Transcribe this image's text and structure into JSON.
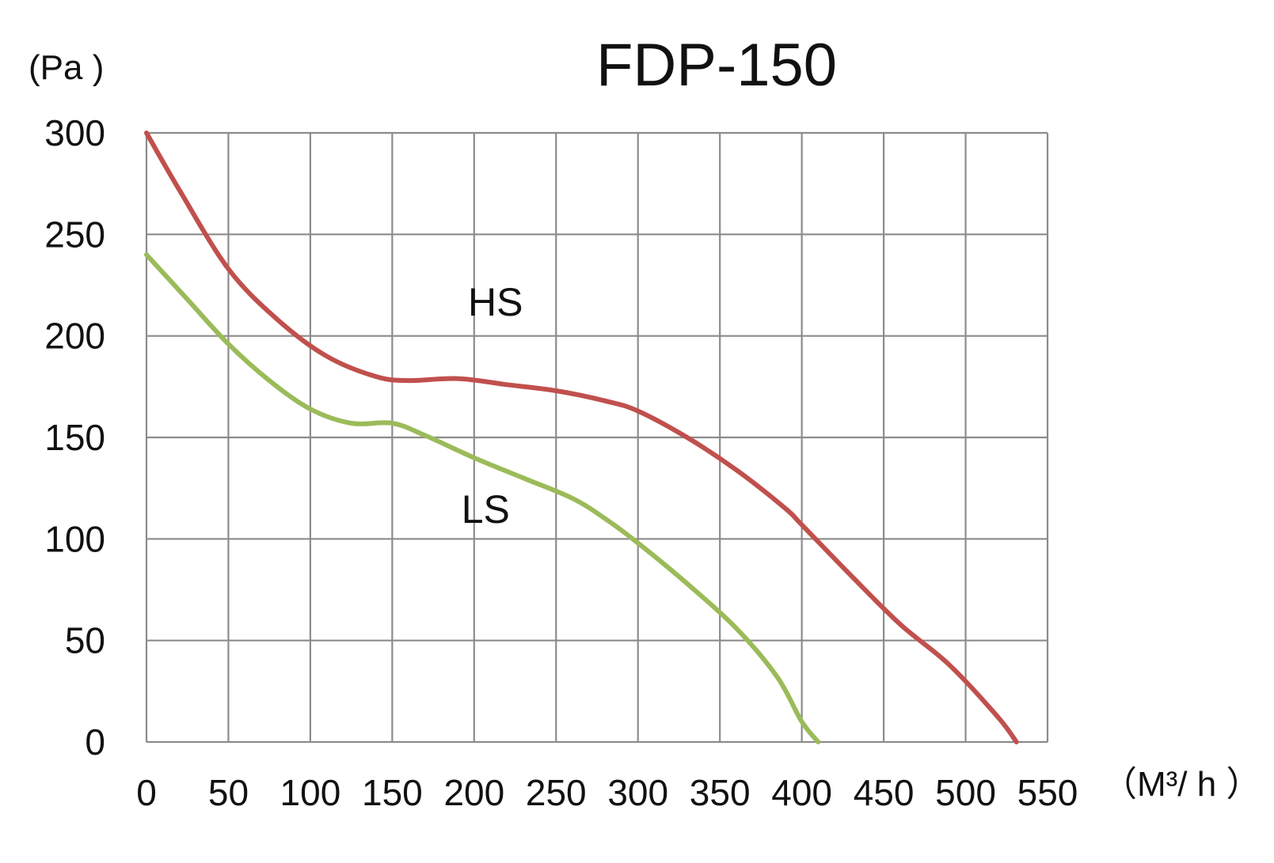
{
  "chart_data": {
    "type": "line",
    "title": "FDP-150",
    "xlabel": "（M³/ h ）",
    "ylabel": "(Pa )",
    "xlim": [
      0,
      550
    ],
    "ylim": [
      0,
      300
    ],
    "x_ticks": [
      0,
      50,
      100,
      150,
      200,
      250,
      300,
      350,
      400,
      450,
      500,
      550
    ],
    "y_ticks": [
      0,
      50,
      100,
      150,
      200,
      250,
      300
    ],
    "grid": true,
    "legend": "none",
    "series": [
      {
        "name": "HS",
        "color": "#c0504d",
        "points": [
          [
            0,
            300
          ],
          [
            20,
            272
          ],
          [
            50,
            233
          ],
          [
            80,
            208
          ],
          [
            110,
            190
          ],
          [
            140,
            180
          ],
          [
            160,
            178
          ],
          [
            190,
            179
          ],
          [
            220,
            176
          ],
          [
            250,
            173
          ],
          [
            280,
            168
          ],
          [
            300,
            163
          ],
          [
            330,
            150
          ],
          [
            360,
            134
          ],
          [
            390,
            115
          ],
          [
            400,
            107
          ],
          [
            430,
            82
          ],
          [
            460,
            58
          ],
          [
            490,
            38
          ],
          [
            520,
            12
          ],
          [
            531,
            0
          ]
        ]
      },
      {
        "name": "LS",
        "color": "#9bbb59",
        "points": [
          [
            0,
            240
          ],
          [
            25,
            218
          ],
          [
            50,
            196
          ],
          [
            75,
            178
          ],
          [
            100,
            164
          ],
          [
            125,
            157
          ],
          [
            150,
            157
          ],
          [
            170,
            151
          ],
          [
            200,
            140
          ],
          [
            230,
            130
          ],
          [
            260,
            120
          ],
          [
            280,
            110
          ],
          [
            300,
            98
          ],
          [
            330,
            78
          ],
          [
            360,
            56
          ],
          [
            385,
            32
          ],
          [
            400,
            10
          ],
          [
            410,
            0
          ]
        ]
      }
    ]
  }
}
